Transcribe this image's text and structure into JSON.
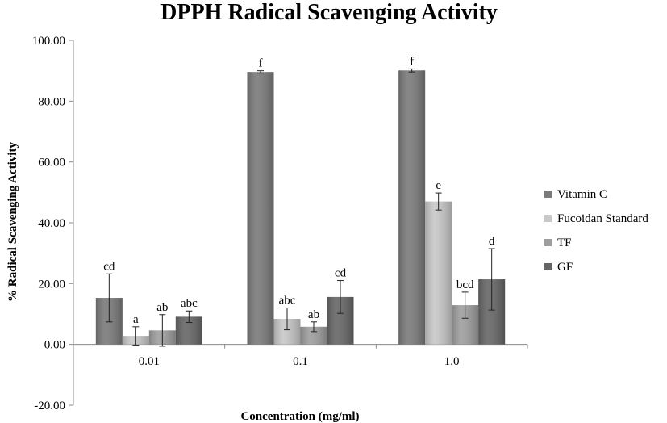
{
  "chart_data": {
    "type": "bar",
    "title": "DPPH Radical Scavenging Activity",
    "xlabel": "Concentration (mg/ml)",
    "ylabel": "% Radical Scavenging Activity",
    "ylim": [
      -20,
      100
    ],
    "yticks": [
      "100.00",
      "80.00",
      "60.00",
      "40.00",
      "20.00",
      "0.00",
      "-20.00"
    ],
    "ytick_values": [
      100,
      80,
      60,
      40,
      20,
      0,
      -20
    ],
    "categories": [
      "0.01",
      "0.1",
      "1.0"
    ],
    "grid": false,
    "legend_position": "right",
    "series": [
      {
        "name": "Vitamin C",
        "color": "#7a7a7a",
        "values": [
          15.3,
          89.6,
          90.1
        ],
        "errors": [
          7.9,
          0.4,
          0.5
        ],
        "labels": [
          "cd",
          "f",
          "f"
        ]
      },
      {
        "name": "Fucoidan Standard",
        "color": "#c8c8c8",
        "values": [
          2.8,
          8.4,
          47.0
        ],
        "errors": [
          3.0,
          3.6,
          2.8
        ],
        "labels": [
          "a",
          "abc",
          "e"
        ]
      },
      {
        "name": "TF",
        "color": "#9e9e9e",
        "values": [
          4.6,
          5.8,
          12.9
        ],
        "errors": [
          5.2,
          1.6,
          4.3
        ],
        "labels": [
          "ab",
          "ab",
          "bcd"
        ]
      },
      {
        "name": "GF",
        "color": "#666666",
        "values": [
          9.1,
          15.6,
          21.4
        ],
        "errors": [
          1.9,
          5.4,
          10.1
        ],
        "labels": [
          "abc",
          "cd",
          "d"
        ]
      }
    ]
  }
}
